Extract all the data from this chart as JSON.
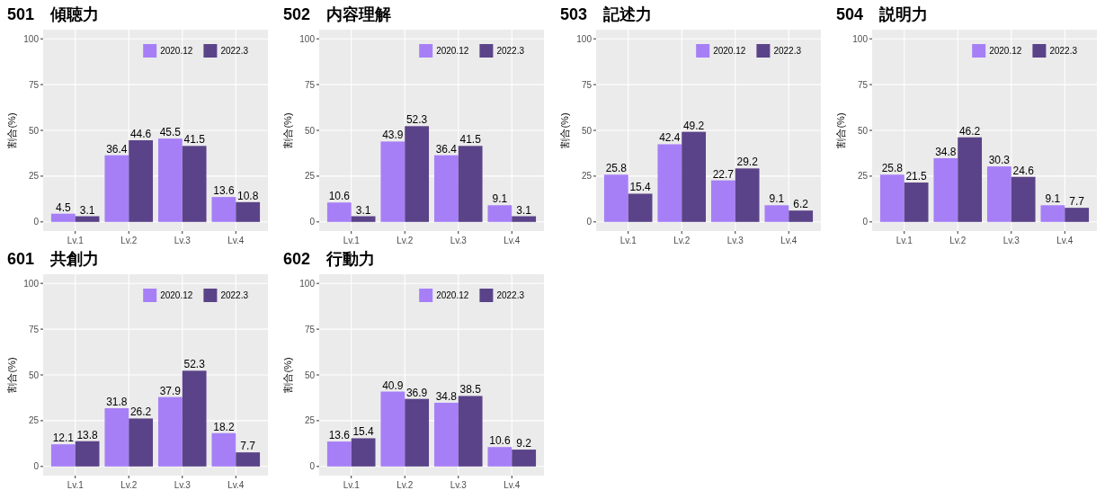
{
  "chart_data": [
    {
      "type": "bar",
      "title": "501　傾聴力",
      "ylabel": "割合(%)",
      "categories": [
        "Lv.1",
        "Lv.2",
        "Lv.3",
        "Lv.4"
      ],
      "ylim": [
        -5,
        105
      ],
      "yticks": [
        0,
        25,
        50,
        75,
        100
      ],
      "grid": true,
      "legend": "top right",
      "data_labels": true,
      "series": [
        {
          "name": "2020.12",
          "color": "#a67ff7",
          "values": [
            4.5,
            36.4,
            45.5,
            13.6
          ]
        },
        {
          "name": "2022.3",
          "color": "#5b4389",
          "values": [
            3.1,
            44.6,
            41.5,
            10.8
          ]
        }
      ]
    },
    {
      "type": "bar",
      "title": "502　内容理解",
      "ylabel": "割合(%)",
      "categories": [
        "Lv.1",
        "Lv.2",
        "Lv.3",
        "Lv.4"
      ],
      "ylim": [
        -5,
        105
      ],
      "yticks": [
        0,
        25,
        50,
        75,
        100
      ],
      "grid": true,
      "legend": "top right",
      "data_labels": true,
      "series": [
        {
          "name": "2020.12",
          "color": "#a67ff7",
          "values": [
            10.6,
            43.9,
            36.4,
            9.1
          ]
        },
        {
          "name": "2022.3",
          "color": "#5b4389",
          "values": [
            3.1,
            52.3,
            41.5,
            3.1
          ]
        }
      ]
    },
    {
      "type": "bar",
      "title": "503　記述力",
      "ylabel": "割合(%)",
      "categories": [
        "Lv.1",
        "Lv.2",
        "Lv.3",
        "Lv.4"
      ],
      "ylim": [
        -5,
        105
      ],
      "yticks": [
        0,
        25,
        50,
        75,
        100
      ],
      "grid": true,
      "legend": "top right",
      "data_labels": true,
      "series": [
        {
          "name": "2020.12",
          "color": "#a67ff7",
          "values": [
            25.8,
            42.4,
            22.7,
            9.1
          ]
        },
        {
          "name": "2022.3",
          "color": "#5b4389",
          "values": [
            15.4,
            49.2,
            29.2,
            6.2
          ]
        }
      ]
    },
    {
      "type": "bar",
      "title": "504　説明力",
      "ylabel": "割合(%)",
      "categories": [
        "Lv.1",
        "Lv.2",
        "Lv.3",
        "Lv.4"
      ],
      "ylim": [
        -5,
        105
      ],
      "yticks": [
        0,
        25,
        50,
        75,
        100
      ],
      "grid": true,
      "legend": "top right",
      "data_labels": true,
      "series": [
        {
          "name": "2020.12",
          "color": "#a67ff7",
          "values": [
            25.8,
            34.8,
            30.3,
            9.1
          ]
        },
        {
          "name": "2022.3",
          "color": "#5b4389",
          "values": [
            21.5,
            46.2,
            24.6,
            7.7
          ]
        }
      ]
    },
    {
      "type": "bar",
      "title": "601　共創力",
      "ylabel": "割合(%)",
      "categories": [
        "Lv.1",
        "Lv.2",
        "Lv.3",
        "Lv.4"
      ],
      "ylim": [
        -5,
        105
      ],
      "yticks": [
        0,
        25,
        50,
        75,
        100
      ],
      "grid": true,
      "legend": "top right",
      "data_labels": true,
      "series": [
        {
          "name": "2020.12",
          "color": "#a67ff7",
          "values": [
            12.1,
            31.8,
            37.9,
            18.2
          ]
        },
        {
          "name": "2022.3",
          "color": "#5b4389",
          "values": [
            13.8,
            26.2,
            52.3,
            7.7
          ]
        }
      ]
    },
    {
      "type": "bar",
      "title": "602　行動力",
      "ylabel": "割合(%)",
      "categories": [
        "Lv.1",
        "Lv.2",
        "Lv.3",
        "Lv.4"
      ],
      "ylim": [
        -5,
        105
      ],
      "yticks": [
        0,
        25,
        50,
        75,
        100
      ],
      "grid": true,
      "legend": "top right",
      "data_labels": true,
      "series": [
        {
          "name": "2020.12",
          "color": "#a67ff7",
          "values": [
            13.6,
            40.9,
            34.8,
            10.6
          ]
        },
        {
          "name": "2022.3",
          "color": "#5b4389",
          "values": [
            15.4,
            36.9,
            38.5,
            9.2
          ]
        }
      ]
    }
  ]
}
